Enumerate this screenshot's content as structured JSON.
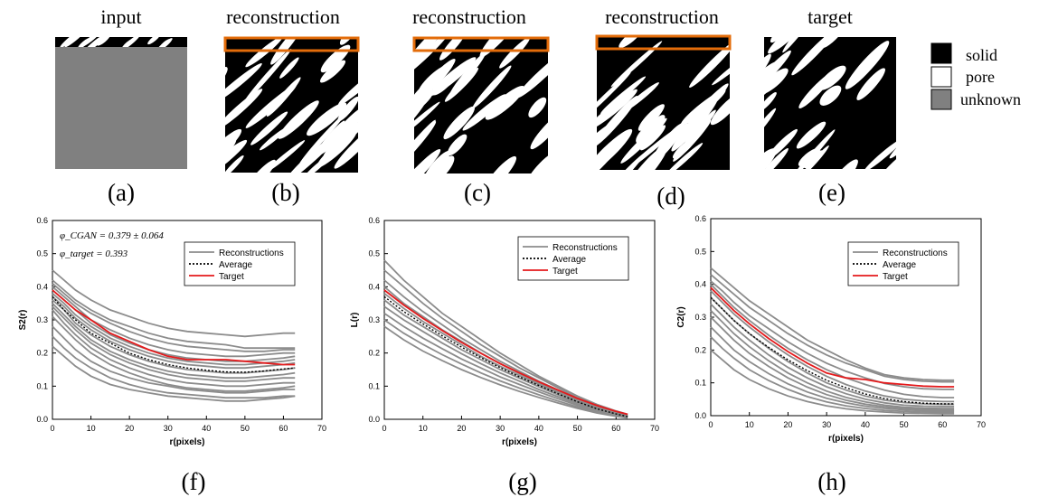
{
  "panels_top": [
    {
      "title": "input",
      "label": "(a)"
    },
    {
      "title": "reconstruction",
      "label": "(b)"
    },
    {
      "title": "reconstruction",
      "label": "(c)"
    },
    {
      "title": "reconstruction",
      "label": "(d)"
    },
    {
      "title": "target",
      "label": "(e)"
    }
  ],
  "material_legend": [
    {
      "label": "solid",
      "color": "#000000"
    },
    {
      "label": "pore",
      "color": "#ffffff"
    },
    {
      "label": "unknown",
      "color": "#808080"
    }
  ],
  "colors": {
    "unknown_gray": "#808080",
    "highlight_box": "#e36c0a",
    "reconstruction_line": "#8c8c8c",
    "average_line": "#000000",
    "target_line": "#e41a1c"
  },
  "chart_data": [
    {
      "type": "line",
      "panel_label": "(f)",
      "xlabel": "r(pixels)",
      "ylabel": "S2(r)",
      "xlim": [
        0,
        70
      ],
      "ylim": [
        0.0,
        0.6
      ],
      "xticks": [
        0,
        10,
        20,
        30,
        40,
        50,
        60,
        70
      ],
      "yticks": [
        0.0,
        0.1,
        0.2,
        0.3,
        0.4,
        0.5,
        0.6
      ],
      "legend_position": "top-right",
      "annotations": [
        "φ_CGAN = 0.379 ± 0.064",
        "φ_target = 0.393"
      ],
      "x": [
        0,
        3,
        6,
        10,
        15,
        20,
        25,
        30,
        35,
        40,
        45,
        50,
        55,
        60,
        63
      ],
      "reconstructions": [
        [
          0.45,
          0.42,
          0.39,
          0.36,
          0.33,
          0.31,
          0.29,
          0.275,
          0.265,
          0.26,
          0.255,
          0.25,
          0.255,
          0.26,
          0.26
        ],
        [
          0.42,
          0.39,
          0.36,
          0.33,
          0.3,
          0.28,
          0.26,
          0.245,
          0.235,
          0.23,
          0.225,
          0.215,
          0.215,
          0.215,
          0.215
        ],
        [
          0.41,
          0.38,
          0.35,
          0.32,
          0.29,
          0.265,
          0.245,
          0.23,
          0.22,
          0.215,
          0.21,
          0.205,
          0.205,
          0.21,
          0.21
        ],
        [
          0.4,
          0.37,
          0.34,
          0.3,
          0.27,
          0.245,
          0.225,
          0.21,
          0.2,
          0.195,
          0.19,
          0.19,
          0.195,
          0.2,
          0.2
        ],
        [
          0.39,
          0.36,
          0.33,
          0.29,
          0.255,
          0.23,
          0.21,
          0.195,
          0.185,
          0.18,
          0.175,
          0.175,
          0.18,
          0.185,
          0.19
        ],
        [
          0.38,
          0.35,
          0.315,
          0.28,
          0.245,
          0.22,
          0.2,
          0.185,
          0.175,
          0.17,
          0.165,
          0.165,
          0.17,
          0.175,
          0.18
        ],
        [
          0.37,
          0.34,
          0.305,
          0.27,
          0.235,
          0.21,
          0.19,
          0.175,
          0.165,
          0.16,
          0.155,
          0.155,
          0.16,
          0.165,
          0.17
        ],
        [
          0.36,
          0.33,
          0.29,
          0.255,
          0.22,
          0.195,
          0.175,
          0.16,
          0.15,
          0.145,
          0.14,
          0.14,
          0.145,
          0.15,
          0.155
        ],
        [
          0.35,
          0.315,
          0.28,
          0.24,
          0.205,
          0.18,
          0.16,
          0.145,
          0.135,
          0.13,
          0.125,
          0.125,
          0.13,
          0.135,
          0.14
        ],
        [
          0.34,
          0.305,
          0.27,
          0.23,
          0.195,
          0.17,
          0.15,
          0.135,
          0.125,
          0.12,
          0.115,
          0.115,
          0.12,
          0.125,
          0.125
        ],
        [
          0.33,
          0.29,
          0.255,
          0.215,
          0.18,
          0.155,
          0.135,
          0.12,
          0.11,
          0.105,
          0.1,
          0.1,
          0.105,
          0.11,
          0.11
        ],
        [
          0.31,
          0.275,
          0.24,
          0.2,
          0.165,
          0.14,
          0.12,
          0.105,
          0.095,
          0.09,
          0.085,
          0.085,
          0.09,
          0.095,
          0.1
        ],
        [
          0.28,
          0.245,
          0.21,
          0.175,
          0.145,
          0.125,
          0.11,
          0.1,
          0.09,
          0.085,
          0.08,
          0.08,
          0.085,
          0.09,
          0.09
        ],
        [
          0.25,
          0.215,
          0.185,
          0.155,
          0.125,
          0.105,
          0.09,
          0.08,
          0.075,
          0.07,
          0.065,
          0.065,
          0.065,
          0.07,
          0.07
        ],
        [
          0.22,
          0.19,
          0.16,
          0.13,
          0.105,
          0.09,
          0.08,
          0.07,
          0.065,
          0.06,
          0.055,
          0.055,
          0.06,
          0.065,
          0.07
        ]
      ],
      "average": [
        0.37,
        0.33,
        0.3,
        0.26,
        0.23,
        0.2,
        0.18,
        0.165,
        0.155,
        0.148,
        0.143,
        0.142,
        0.146,
        0.152,
        0.155
      ],
      "target": [
        0.39,
        0.36,
        0.33,
        0.3,
        0.26,
        0.235,
        0.21,
        0.19,
        0.18,
        0.18,
        0.18,
        0.175,
        0.17,
        0.165,
        0.165
      ],
      "legend": [
        "Reconstructions",
        "Average",
        "Target"
      ]
    },
    {
      "type": "line",
      "panel_label": "(g)",
      "xlabel": "r(pixels)",
      "ylabel": "L(r)",
      "xlim": [
        0,
        70
      ],
      "ylim": [
        0.0,
        0.6
      ],
      "xticks": [
        0,
        10,
        20,
        30,
        40,
        50,
        60,
        70
      ],
      "yticks": [
        0.0,
        0.1,
        0.2,
        0.3,
        0.4,
        0.5,
        0.6
      ],
      "legend_position": "top-right",
      "x": [
        0,
        5,
        10,
        15,
        20,
        25,
        30,
        35,
        40,
        45,
        50,
        55,
        60,
        63
      ],
      "reconstructions": [
        [
          0.48,
          0.42,
          0.37,
          0.32,
          0.28,
          0.24,
          0.2,
          0.165,
          0.13,
          0.1,
          0.07,
          0.045,
          0.025,
          0.015
        ],
        [
          0.45,
          0.4,
          0.35,
          0.305,
          0.265,
          0.225,
          0.19,
          0.155,
          0.125,
          0.095,
          0.065,
          0.042,
          0.022,
          0.012
        ],
        [
          0.42,
          0.37,
          0.325,
          0.285,
          0.245,
          0.21,
          0.175,
          0.145,
          0.115,
          0.088,
          0.06,
          0.038,
          0.02,
          0.01
        ],
        [
          0.4,
          0.35,
          0.31,
          0.27,
          0.235,
          0.2,
          0.168,
          0.138,
          0.11,
          0.083,
          0.058,
          0.036,
          0.018,
          0.01
        ],
        [
          0.38,
          0.335,
          0.295,
          0.26,
          0.225,
          0.19,
          0.16,
          0.132,
          0.105,
          0.08,
          0.055,
          0.034,
          0.017,
          0.009
        ],
        [
          0.36,
          0.315,
          0.28,
          0.245,
          0.21,
          0.18,
          0.15,
          0.124,
          0.098,
          0.074,
          0.05,
          0.031,
          0.015,
          0.008
        ],
        [
          0.34,
          0.3,
          0.265,
          0.23,
          0.198,
          0.168,
          0.14,
          0.115,
          0.09,
          0.068,
          0.046,
          0.028,
          0.014,
          0.007
        ],
        [
          0.32,
          0.28,
          0.245,
          0.213,
          0.182,
          0.155,
          0.128,
          0.105,
          0.083,
          0.062,
          0.042,
          0.025,
          0.012,
          0.006
        ],
        [
          0.3,
          0.26,
          0.226,
          0.195,
          0.167,
          0.14,
          0.116,
          0.094,
          0.074,
          0.055,
          0.037,
          0.022,
          0.01,
          0.005
        ],
        [
          0.28,
          0.24,
          0.206,
          0.177,
          0.15,
          0.126,
          0.104,
          0.084,
          0.066,
          0.049,
          0.033,
          0.019,
          0.009,
          0.004
        ]
      ],
      "average": [
        0.37,
        0.325,
        0.288,
        0.252,
        0.218,
        0.186,
        0.156,
        0.128,
        0.102,
        0.077,
        0.053,
        0.032,
        0.016,
        0.008
      ],
      "target": [
        0.39,
        0.345,
        0.305,
        0.268,
        0.232,
        0.199,
        0.168,
        0.14,
        0.113,
        0.088,
        0.063,
        0.042,
        0.024,
        0.015
      ],
      "legend": [
        "Reconstructions",
        "Average",
        "Target"
      ]
    },
    {
      "type": "line",
      "panel_label": "(h)",
      "xlabel": "r(pixels)",
      "ylabel": "C2(r)",
      "xlim": [
        0,
        70
      ],
      "ylim": [
        0.0,
        0.6
      ],
      "xticks": [
        0,
        10,
        20,
        30,
        40,
        50,
        60,
        70
      ],
      "yticks": [
        0.0,
        0.1,
        0.2,
        0.3,
        0.4,
        0.5,
        0.6
      ],
      "legend_position": "top-right",
      "x": [
        0,
        3,
        6,
        10,
        15,
        20,
        25,
        30,
        35,
        40,
        45,
        50,
        55,
        60,
        63
      ],
      "reconstructions": [
        [
          0.45,
          0.42,
          0.39,
          0.35,
          0.31,
          0.27,
          0.23,
          0.2,
          0.17,
          0.145,
          0.125,
          0.115,
          0.11,
          0.108,
          0.108
        ],
        [
          0.43,
          0.4,
          0.37,
          0.33,
          0.29,
          0.25,
          0.215,
          0.185,
          0.16,
          0.14,
          0.12,
          0.11,
          0.105,
          0.103,
          0.103
        ],
        [
          0.41,
          0.38,
          0.345,
          0.305,
          0.265,
          0.225,
          0.19,
          0.16,
          0.135,
          0.115,
          0.098,
          0.088,
          0.082,
          0.08,
          0.08
        ],
        [
          0.4,
          0.365,
          0.33,
          0.29,
          0.245,
          0.205,
          0.17,
          0.14,
          0.115,
          0.095,
          0.078,
          0.065,
          0.058,
          0.055,
          0.055
        ],
        [
          0.38,
          0.345,
          0.31,
          0.27,
          0.225,
          0.185,
          0.15,
          0.12,
          0.095,
          0.075,
          0.06,
          0.05,
          0.045,
          0.043,
          0.043
        ],
        [
          0.36,
          0.325,
          0.29,
          0.25,
          0.205,
          0.165,
          0.13,
          0.1,
          0.078,
          0.06,
          0.047,
          0.04,
          0.036,
          0.035,
          0.035
        ],
        [
          0.34,
          0.305,
          0.27,
          0.23,
          0.185,
          0.147,
          0.115,
          0.088,
          0.067,
          0.05,
          0.039,
          0.032,
          0.029,
          0.028,
          0.028
        ],
        [
          0.32,
          0.285,
          0.25,
          0.21,
          0.167,
          0.13,
          0.1,
          0.075,
          0.056,
          0.042,
          0.032,
          0.026,
          0.023,
          0.022,
          0.022
        ],
        [
          0.3,
          0.265,
          0.23,
          0.19,
          0.15,
          0.115,
          0.087,
          0.064,
          0.047,
          0.035,
          0.027,
          0.022,
          0.019,
          0.018,
          0.018
        ],
        [
          0.27,
          0.235,
          0.2,
          0.165,
          0.128,
          0.097,
          0.072,
          0.053,
          0.039,
          0.029,
          0.022,
          0.018,
          0.015,
          0.014,
          0.014
        ],
        [
          0.24,
          0.205,
          0.175,
          0.14,
          0.107,
          0.08,
          0.058,
          0.042,
          0.03,
          0.022,
          0.016,
          0.013,
          0.011,
          0.01,
          0.01
        ],
        [
          0.2,
          0.17,
          0.14,
          0.11,
          0.082,
          0.06,
          0.043,
          0.03,
          0.021,
          0.015,
          0.011,
          0.008,
          0.007,
          0.006,
          0.006
        ]
      ],
      "average": [
        0.36,
        0.325,
        0.29,
        0.25,
        0.208,
        0.17,
        0.137,
        0.108,
        0.085,
        0.066,
        0.052,
        0.043,
        0.038,
        0.036,
        0.036
      ],
      "target": [
        0.39,
        0.355,
        0.32,
        0.28,
        0.235,
        0.195,
        0.16,
        0.13,
        0.115,
        0.11,
        0.1,
        0.095,
        0.09,
        0.088,
        0.088
      ],
      "legend": [
        "Reconstructions",
        "Average",
        "Target"
      ]
    }
  ]
}
